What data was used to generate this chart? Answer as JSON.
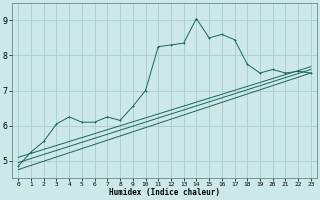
{
  "xlabel": "Humidex (Indice chaleur)",
  "bg_color": "#cce8e8",
  "grid_color": "#aacccc",
  "line_color": "#1a6655",
  "xlim": [
    -0.5,
    23.5
  ],
  "ylim": [
    4.5,
    9.5
  ],
  "yticks": [
    5,
    6,
    7,
    8,
    9
  ],
  "xticks": [
    0,
    1,
    2,
    3,
    4,
    5,
    6,
    7,
    8,
    9,
    10,
    11,
    12,
    13,
    14,
    15,
    16,
    17,
    18,
    19,
    20,
    21,
    22,
    23
  ],
  "main_x": [
    0,
    1,
    2,
    3,
    4,
    5,
    6,
    7,
    8,
    9,
    10,
    11,
    12,
    13,
    14,
    15,
    16,
    17,
    18,
    19,
    20,
    21,
    22,
    23
  ],
  "main_y": [
    4.85,
    5.25,
    5.55,
    6.05,
    6.25,
    6.1,
    6.1,
    6.25,
    6.15,
    6.55,
    7.0,
    8.25,
    8.3,
    8.35,
    9.05,
    8.5,
    8.6,
    8.45,
    7.75,
    7.5,
    7.6,
    7.5,
    7.55,
    7.5
  ],
  "line2_x": [
    0,
    23
  ],
  "line2_y": [
    4.95,
    7.6
  ],
  "line3_x": [
    0,
    23
  ],
  "line3_y": [
    4.75,
    7.5
  ],
  "line4_x": [
    0,
    23
  ],
  "line4_y": [
    5.1,
    7.68
  ]
}
